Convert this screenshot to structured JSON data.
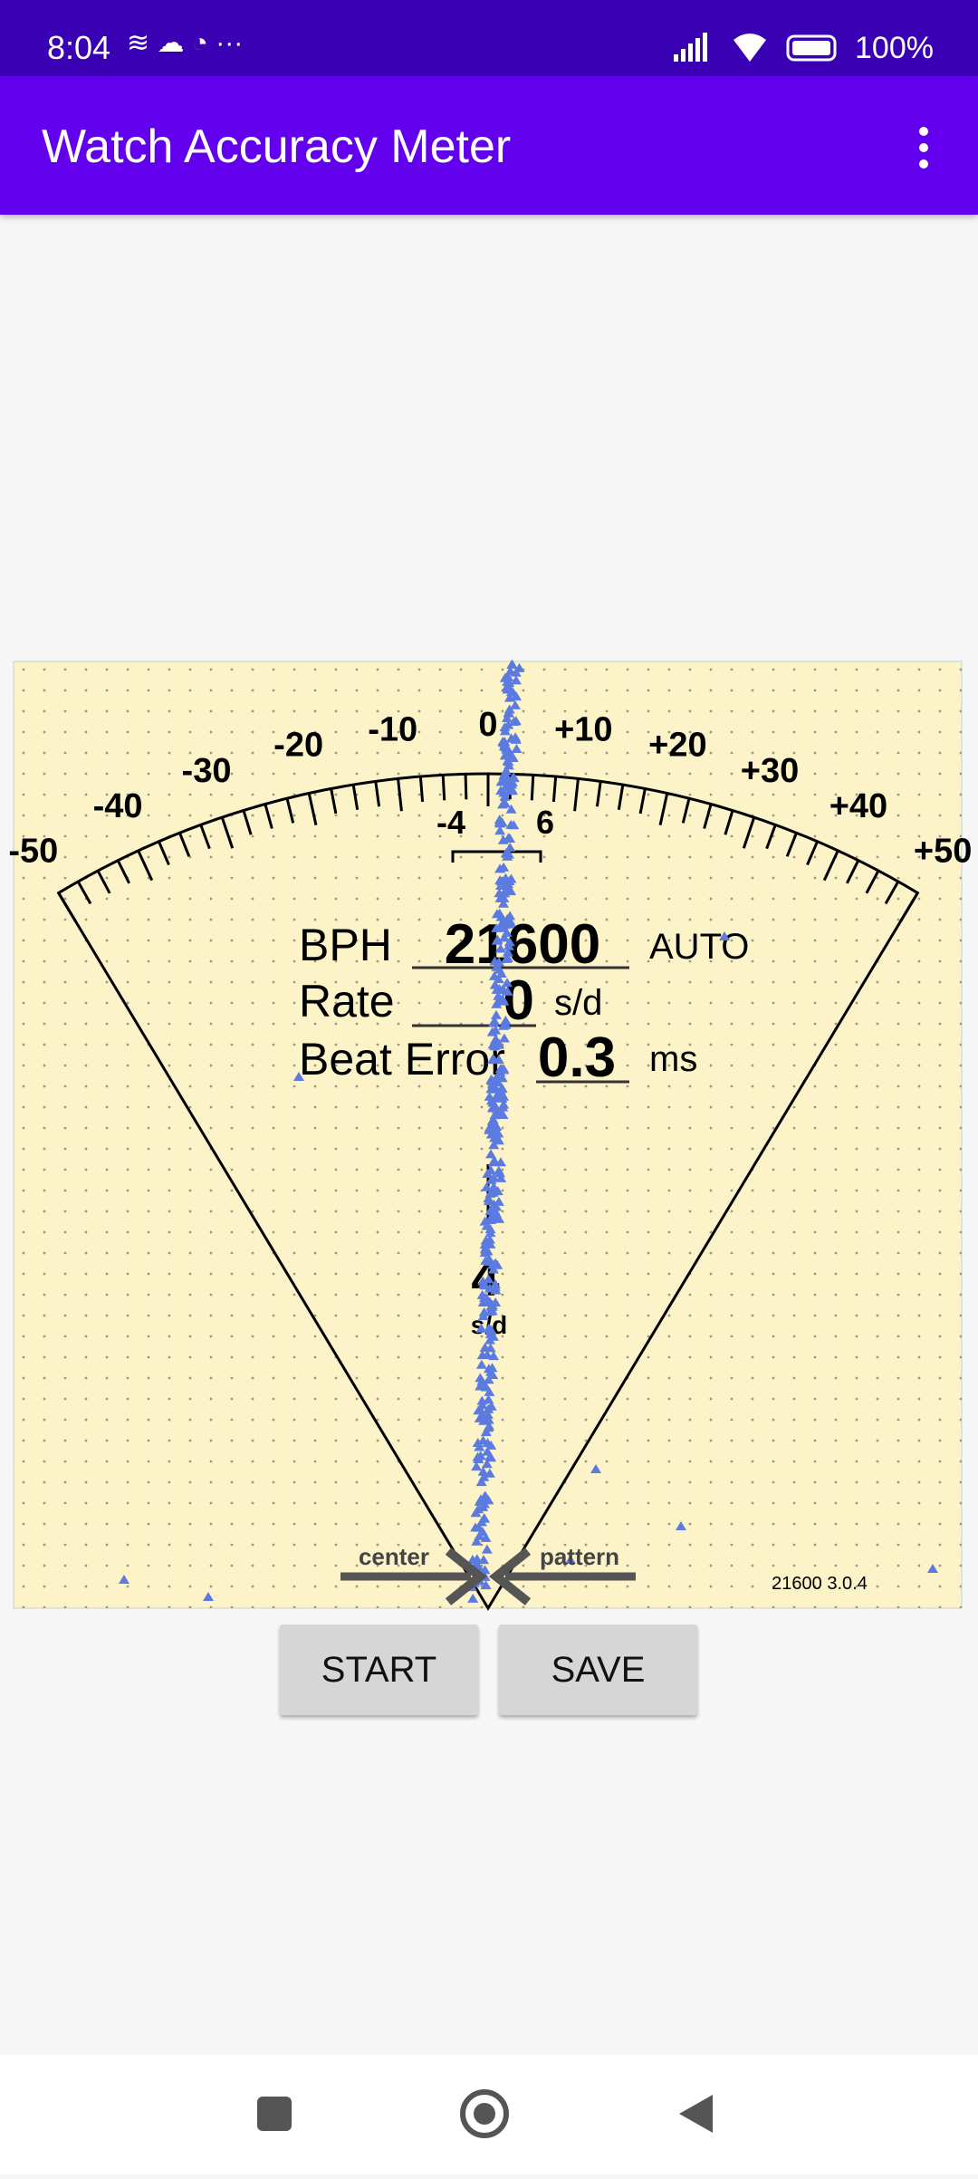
{
  "status_bar": {
    "time": "8:04",
    "battery": "100%"
  },
  "app_bar": {
    "title": "Watch Accuracy Meter"
  },
  "meter": {
    "scale_labels": [
      "-50",
      "-40",
      "-30",
      "-20",
      "-10",
      "0",
      "+10",
      "+20",
      "+30",
      "+40",
      "+50"
    ],
    "fine_labels": [
      "-4",
      "6"
    ],
    "bph_label": "BPH",
    "bph_value": "21600",
    "bph_mode": "AUTO",
    "rate_label": "Rate",
    "rate_value": "0",
    "rate_unit": "s/d",
    "beat_error_label": "Beat Error",
    "beat_error_value": "0.3",
    "beat_error_unit": "ms",
    "needle_value": "4",
    "needle_unit": "s/d",
    "center_label": "center",
    "pattern_label": "pattern",
    "version": "21600 3.0.4"
  },
  "buttons": {
    "start": "START",
    "save": "SAVE"
  }
}
